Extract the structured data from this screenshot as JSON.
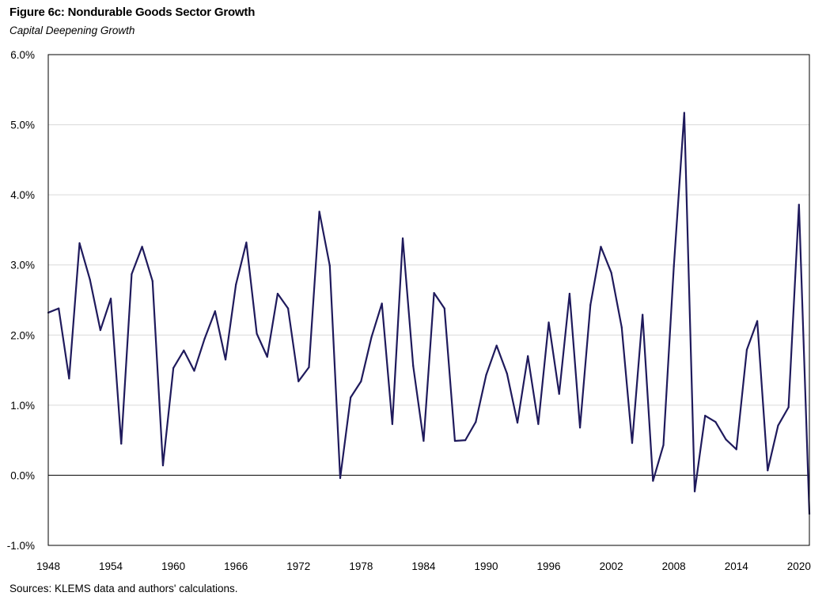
{
  "title": "Figure 6c: Nondurable Goods Sector Growth",
  "subtitle": "Capital Deepening Growth",
  "source": "Sources: KLEMS data and authors' calculations.",
  "chart_data": {
    "type": "line",
    "ylim": [
      -1.0,
      6.0
    ],
    "y_ticks": [
      -1.0,
      0.0,
      1.0,
      2.0,
      3.0,
      4.0,
      5.0,
      6.0
    ],
    "y_tick_labels": [
      "-1.0%",
      "0.0%",
      "1.0%",
      "2.0%",
      "3.0%",
      "4.0%",
      "5.0%",
      "6.0%"
    ],
    "x_ticks": [
      1948,
      1954,
      1960,
      1966,
      1972,
      1978,
      1984,
      1990,
      1996,
      2002,
      2008,
      2014,
      2020
    ],
    "x_tick_labels": [
      "1948",
      "1954",
      "1960",
      "1966",
      "1972",
      "1978",
      "1984",
      "1990",
      "1996",
      "2002",
      "2008",
      "2014",
      "2020"
    ],
    "xlim": [
      1948,
      2021
    ],
    "grid": true,
    "line_color": "#1f1a5c",
    "grid_color": "#d9d9d9",
    "series": [
      {
        "x": [
          1948,
          1949,
          1950,
          1951,
          1952,
          1953,
          1954,
          1955,
          1956,
          1957,
          1958,
          1959,
          1960,
          1961,
          1962,
          1963,
          1964,
          1965,
          1966,
          1967,
          1968,
          1969,
          1970,
          1971,
          1972,
          1973,
          1974,
          1975,
          1976,
          1977,
          1978,
          1979,
          1980,
          1981,
          1982,
          1983,
          1984,
          1985,
          1986,
          1987,
          1988,
          1989,
          1990,
          1991,
          1992,
          1993,
          1994,
          1995,
          1996,
          1997,
          1998,
          1999,
          2000,
          2001,
          2002,
          2003,
          2004,
          2005,
          2006,
          2007,
          2008,
          2009,
          2010,
          2011,
          2012,
          2013,
          2014,
          2015,
          2016,
          2017,
          2018,
          2019,
          2020,
          2021
        ],
        "values": [
          2.32,
          2.38,
          1.38,
          3.31,
          2.79,
          2.07,
          2.52,
          0.45,
          2.87,
          3.26,
          2.77,
          0.14,
          1.53,
          1.78,
          1.49,
          1.95,
          2.34,
          1.65,
          2.72,
          3.32,
          2.02,
          1.69,
          2.59,
          2.38,
          1.34,
          1.54,
          3.76,
          2.99,
          -0.04,
          1.11,
          1.34,
          1.97,
          2.45,
          0.73,
          3.38,
          1.56,
          0.49,
          2.6,
          2.38,
          0.49,
          0.5,
          0.76,
          1.43,
          1.85,
          1.45,
          0.75,
          1.7,
          0.73,
          2.18,
          1.16,
          2.59,
          0.68,
          2.43,
          3.26,
          2.89,
          2.11,
          0.46,
          2.29,
          -0.08,
          0.43,
          2.98,
          5.17,
          -0.23,
          0.85,
          0.76,
          0.51,
          0.37,
          1.79,
          2.2,
          0.07,
          0.71,
          0.97,
          3.86,
          -0.55
        ]
      }
    ]
  }
}
